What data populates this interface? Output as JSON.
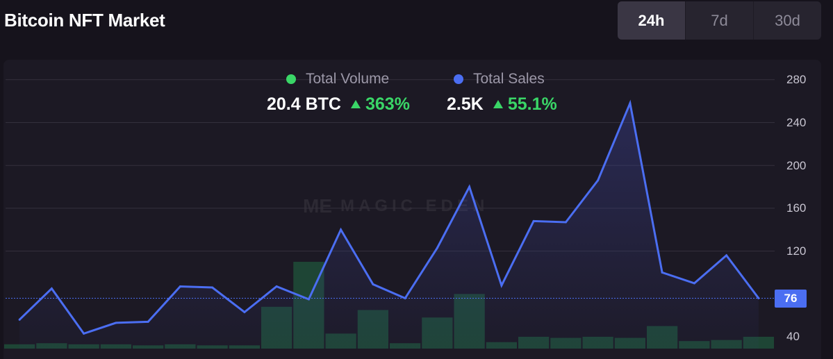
{
  "header": {
    "title": "Bitcoin NFT Market"
  },
  "range_tabs": [
    {
      "label": "24h",
      "active": true
    },
    {
      "label": "7d",
      "active": false
    },
    {
      "label": "30d",
      "active": false
    }
  ],
  "legend": {
    "volume": {
      "label": "Total Volume",
      "value": "20.4 BTC",
      "change": "363%",
      "color": "#3ad667"
    },
    "sales": {
      "label": "Total Sales",
      "value": "2.5K",
      "change": "55.1%",
      "color": "#4b6ef2"
    }
  },
  "watermark": "MAGIC EDEN",
  "current_value_label": "76",
  "chart_data": {
    "type": "line",
    "ylim": [
      30,
      290
    ],
    "yticks": [
      "280",
      "240",
      "200",
      "160",
      "120",
      "40"
    ],
    "grid": true,
    "current_value": 76,
    "series": [
      {
        "name": "Total Sales",
        "type": "line",
        "color": "#4b6ef2",
        "values": [
          56,
          85,
          43,
          53,
          54,
          87,
          86,
          63,
          87,
          75,
          140,
          89,
          76,
          123,
          180,
          88,
          148,
          147,
          186,
          258,
          100,
          90,
          116,
          76
        ]
      },
      {
        "name": "Total Volume",
        "type": "bar",
        "color": "#1e4535",
        "values": [
          33,
          34,
          33,
          33,
          32,
          33,
          32,
          32,
          68,
          110,
          43,
          65,
          34,
          58,
          80,
          35,
          40,
          39,
          40,
          39,
          50,
          36,
          37,
          40
        ]
      }
    ]
  }
}
